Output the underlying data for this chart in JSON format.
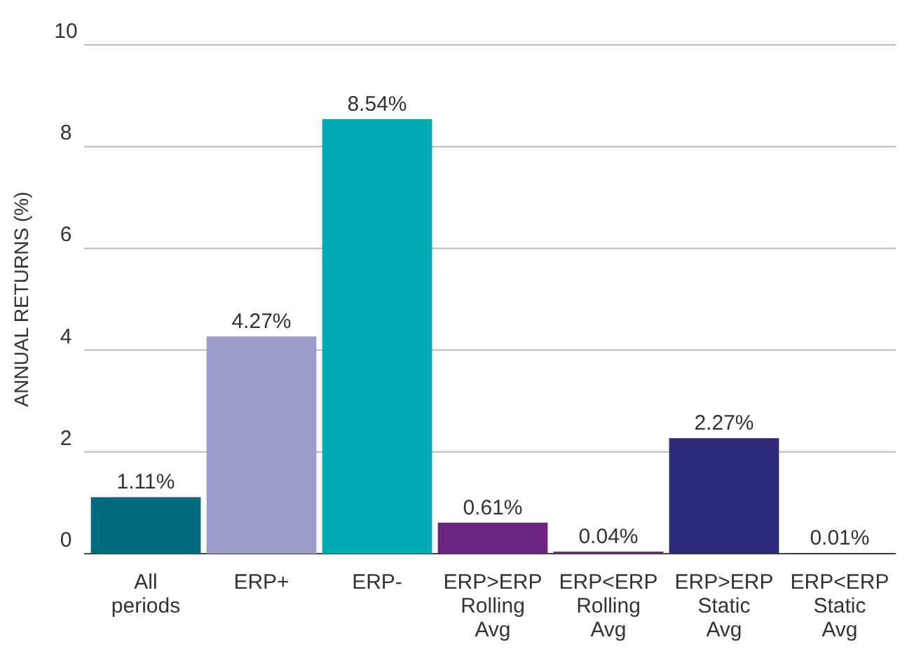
{
  "chart_data": {
    "type": "bar",
    "ylabel": "ANNUAL RETURNS (%)",
    "categories": [
      "All periods",
      "ERP+",
      "ERP-",
      "ERP>ERP Rolling Avg",
      "ERP<ERP Rolling Avg",
      "ERP>ERP Static Avg",
      "ERP<ERP Static Avg"
    ],
    "values": [
      1.11,
      4.27,
      8.54,
      0.61,
      0.04,
      2.27,
      0.01
    ],
    "colors": [
      "#006b7e",
      "#9c9ccc",
      "#00abb5",
      "#6b2482",
      "#6b2482",
      "#2c2a7b",
      "#2c2a7b"
    ],
    "value_labels": [
      "1.11%",
      "4.27%",
      "8.54%",
      "0.61%",
      "0.04%",
      "2.27%",
      "0.01%"
    ],
    "ylim": [
      0,
      10
    ],
    "yticks": [
      0,
      2,
      4,
      6,
      8,
      10
    ],
    "grid": "y"
  }
}
